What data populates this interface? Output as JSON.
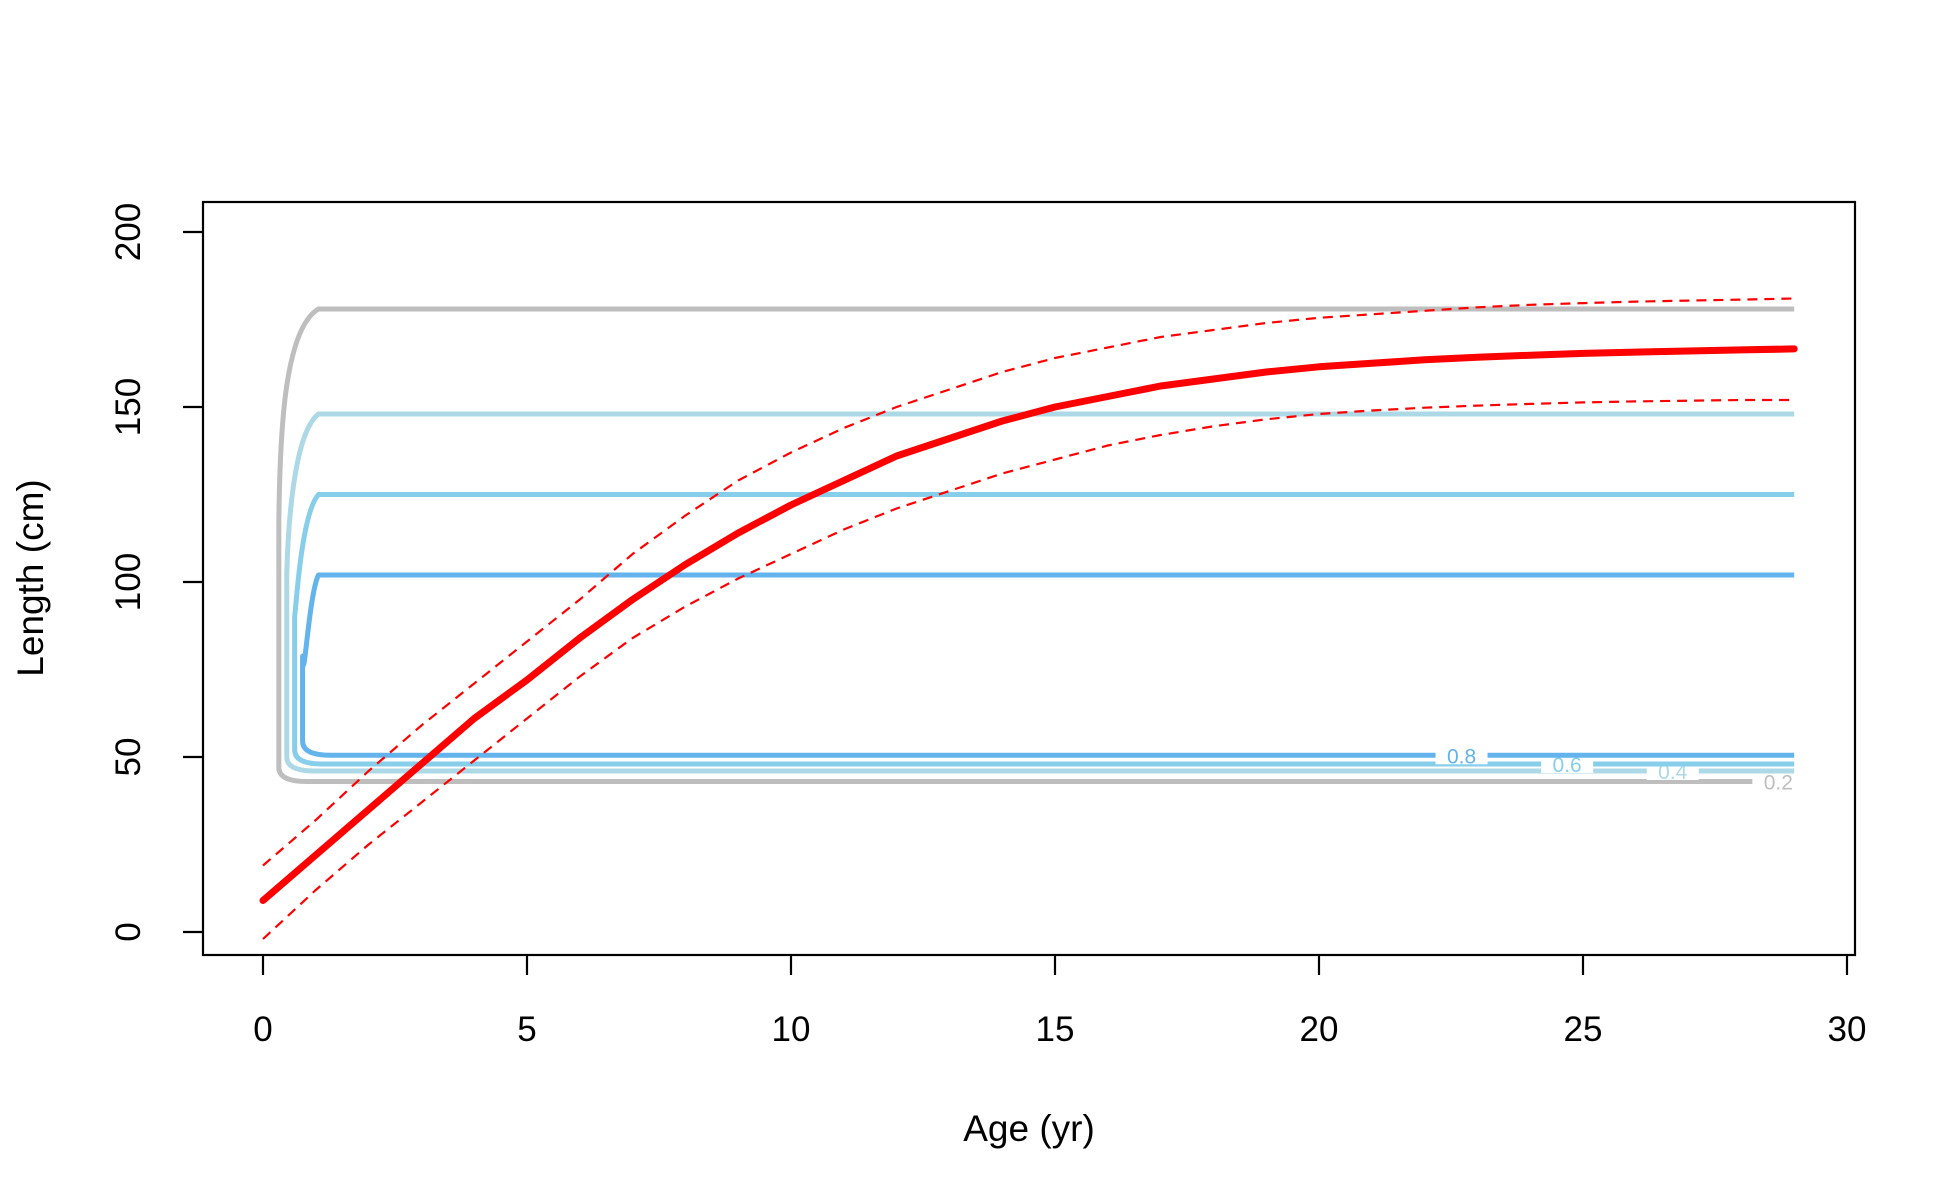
{
  "chart_data": {
    "type": "line",
    "title": "",
    "xlabel": "Age (yr)",
    "ylabel": "Length (cm)",
    "xlim": [
      0,
      30
    ],
    "ylim": [
      0,
      200
    ],
    "xticks": [
      0,
      5,
      10,
      15,
      20,
      25,
      30
    ],
    "yticks": [
      0,
      50,
      100,
      150,
      200
    ],
    "grid": false,
    "legend": "none",
    "growth_curve": {
      "color": "#ff0000",
      "x": [
        0,
        1,
        2,
        3,
        4,
        5,
        6,
        7,
        8,
        9,
        10,
        11,
        12,
        13,
        14,
        15,
        16,
        17,
        18,
        19,
        20,
        21,
        22,
        23,
        24,
        25,
        26,
        27,
        28,
        29
      ],
      "mean": [
        9,
        22,
        35,
        48,
        61,
        72,
        84,
        95,
        105,
        114,
        122,
        129,
        136,
        141,
        146,
        150,
        153,
        156,
        158,
        160,
        161.5,
        162.5,
        163.5,
        164.2,
        164.8,
        165.3,
        165.7,
        166,
        166.3,
        166.6
      ],
      "upper": [
        19,
        32,
        46,
        59,
        71,
        83,
        95,
        108,
        119,
        129,
        137,
        144,
        150,
        155,
        160,
        164,
        167,
        170,
        172,
        174,
        175.5,
        176.5,
        177.5,
        178.5,
        179.2,
        179.7,
        180.1,
        180.4,
        180.7,
        181
      ],
      "lower": [
        -2,
        12,
        25,
        37,
        49,
        61,
        73,
        84,
        93,
        101,
        108,
        115,
        121,
        126,
        131,
        135,
        139,
        142,
        144.5,
        146.5,
        148,
        149,
        149.8,
        150.4,
        150.9,
        151.3,
        151.6,
        151.8,
        152,
        152
      ]
    },
    "contours": [
      {
        "label": "0.2",
        "color": "#bebebe",
        "upper": 178,
        "lower": 43,
        "x_left": 0.3,
        "label_x": 28.7
      },
      {
        "label": "0.4",
        "color": "#add8e6",
        "upper": 148,
        "lower": 46,
        "x_left": 0.45,
        "label_x": 26.7
      },
      {
        "label": "0.6",
        "color": "#87ceeb",
        "upper": 125,
        "lower": 48,
        "x_left": 0.6,
        "label_x": 24.7
      },
      {
        "label": "0.8",
        "color": "#63b3ed",
        "upper": 102,
        "lower": 50.5,
        "x_left": 0.75,
        "label_x": 22.7
      }
    ],
    "contour_x_end": 29
  }
}
